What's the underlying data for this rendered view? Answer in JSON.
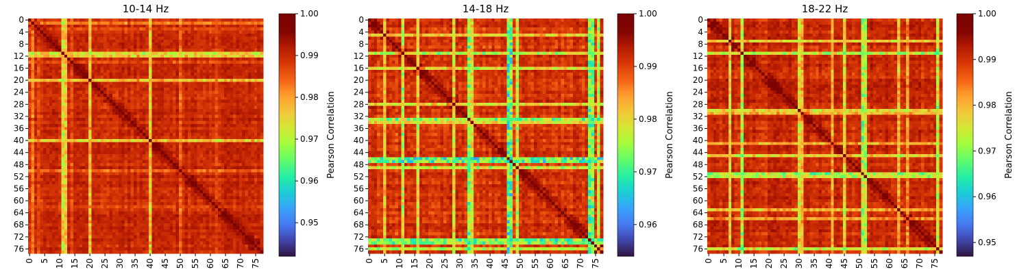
{
  "chart_data": [
    {
      "type": "heatmap",
      "title": "10-14 Hz",
      "size": 78,
      "xticks": [
        "0",
        "5",
        "10",
        "15",
        "20",
        "25",
        "30",
        "35",
        "40",
        "45",
        "50",
        "55",
        "60",
        "65",
        "70",
        "75"
      ],
      "xtick_step": 5,
      "yticks": [
        "0",
        "4",
        "8",
        "12",
        "16",
        "20",
        "24",
        "28",
        "32",
        "36",
        "40",
        "44",
        "48",
        "52",
        "56",
        "60",
        "64",
        "68",
        "72",
        "76"
      ],
      "ytick_step": 4,
      "colorbar": {
        "label": "Pearson Correlation",
        "min": 0.942,
        "max": 1.0,
        "ticks": [
          "1.00",
          "0.99",
          "0.98",
          "0.97",
          "0.96",
          "0.95"
        ],
        "tick_values": [
          1.0,
          0.99,
          0.98,
          0.97,
          0.96,
          0.95
        ]
      },
      "diagonal": 1.0,
      "typical_offdiag": 0.99,
      "bright_rows": [
        {
          "index": 1,
          "value": 0.983
        },
        {
          "index": 3,
          "value": 0.985
        },
        {
          "index": 11,
          "value": 0.97
        },
        {
          "index": 12,
          "value": 0.975
        },
        {
          "index": 14,
          "value": 0.986
        },
        {
          "index": 20,
          "value": 0.976
        },
        {
          "index": 36,
          "value": 0.987
        },
        {
          "index": 40,
          "value": 0.972
        },
        {
          "index": 50,
          "value": 0.985
        },
        {
          "index": 62,
          "value": 0.986
        }
      ]
    },
    {
      "type": "heatmap",
      "title": "14-18 Hz",
      "size": 78,
      "xticks": [
        "0",
        "5",
        "10",
        "15",
        "20",
        "25",
        "30",
        "35",
        "40",
        "45",
        "50",
        "55",
        "60",
        "65",
        "70",
        "75"
      ],
      "xtick_step": 5,
      "yticks": [
        "0",
        "4",
        "8",
        "12",
        "16",
        "20",
        "24",
        "28",
        "32",
        "36",
        "40",
        "44",
        "48",
        "52",
        "56",
        "60",
        "64",
        "68",
        "72",
        "76"
      ],
      "ytick_step": 4,
      "colorbar": {
        "label": "Pearson Correlation",
        "min": 0.954,
        "max": 1.0,
        "ticks": [
          "1.00",
          "0.99",
          "0.98",
          "0.97",
          "0.96"
        ],
        "tick_values": [
          1.0,
          0.99,
          0.98,
          0.97,
          0.96
        ]
      },
      "diagonal": 1.0,
      "typical_offdiag": 0.991,
      "bright_rows": [
        {
          "index": 5,
          "value": 0.978
        },
        {
          "index": 11,
          "value": 0.974
        },
        {
          "index": 16,
          "value": 0.978
        },
        {
          "index": 28,
          "value": 0.977
        },
        {
          "index": 33,
          "value": 0.972
        },
        {
          "index": 34,
          "value": 0.976
        },
        {
          "index": 46,
          "value": 0.966
        },
        {
          "index": 47,
          "value": 0.968
        },
        {
          "index": 49,
          "value": 0.974
        },
        {
          "index": 73,
          "value": 0.97
        },
        {
          "index": 74,
          "value": 0.972
        },
        {
          "index": 76,
          "value": 0.976
        }
      ]
    },
    {
      "type": "heatmap",
      "title": "18-22 Hz",
      "size": 78,
      "xticks": [
        "0",
        "5",
        "10",
        "15",
        "20",
        "25",
        "30",
        "35",
        "40",
        "45",
        "50",
        "55",
        "60",
        "65",
        "70",
        "75"
      ],
      "xtick_step": 5,
      "yticks": [
        "0",
        "4",
        "8",
        "12",
        "16",
        "20",
        "24",
        "28",
        "32",
        "36",
        "40",
        "44",
        "48",
        "52",
        "56",
        "60",
        "64",
        "68",
        "72",
        "76"
      ],
      "ytick_step": 4,
      "colorbar": {
        "label": "Pearson Correlation",
        "min": 0.947,
        "max": 1.0,
        "ticks": [
          "1.00",
          "0.99",
          "0.98",
          "0.97",
          "0.96",
          "0.95"
        ],
        "tick_values": [
          1.0,
          0.99,
          0.98,
          0.97,
          0.96,
          0.95
        ]
      },
      "diagonal": 1.0,
      "typical_offdiag": 0.991,
      "bright_rows": [
        {
          "index": 7,
          "value": 0.976
        },
        {
          "index": 11,
          "value": 0.972
        },
        {
          "index": 30,
          "value": 0.974
        },
        {
          "index": 31,
          "value": 0.977
        },
        {
          "index": 41,
          "value": 0.978
        },
        {
          "index": 45,
          "value": 0.976
        },
        {
          "index": 51,
          "value": 0.968
        },
        {
          "index": 52,
          "value": 0.971
        },
        {
          "index": 63,
          "value": 0.978
        },
        {
          "index": 66,
          "value": 0.98
        },
        {
          "index": 76,
          "value": 0.973
        }
      ]
    }
  ]
}
